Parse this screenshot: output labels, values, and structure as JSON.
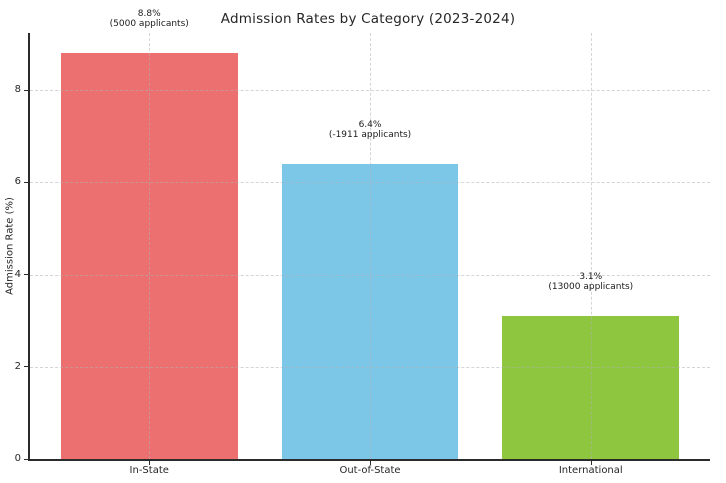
{
  "chart_data": {
    "type": "bar",
    "title": "Admission Rates by Category (2023-2024)",
    "xlabel": "",
    "ylabel": "Admission Rate (%)",
    "categories": [
      "In-State",
      "Out-of-State",
      "International"
    ],
    "values": [
      8.8,
      6.4,
      3.1
    ],
    "series": [
      {
        "name": "Admission Rate",
        "values": [
          8.8,
          6.4,
          3.1
        ]
      }
    ],
    "bars": [
      {
        "category": "In-State",
        "value": 8.8,
        "rate_label": "8.8%",
        "applicants_label": "(5000 applicants)",
        "color": "#ec7070"
      },
      {
        "category": "Out-of-State",
        "value": 6.4,
        "rate_label": "6.4%",
        "applicants_label": "(-1911 applicants)",
        "color": "#7cc6e8"
      },
      {
        "category": "International",
        "value": 3.1,
        "rate_label": "3.1%",
        "applicants_label": "(13000 applicants)",
        "color": "#8ec63f"
      }
    ],
    "yticks": [
      0,
      2,
      4,
      6,
      8
    ],
    "ylim": [
      0,
      9.24
    ],
    "bar_width_fraction": 0.8,
    "x_margin": 0.54,
    "grid": true,
    "grid_style": "dashed",
    "legend": false,
    "colors": {
      "axis": "#2b2b2b",
      "grid": "#b0b0b0",
      "text": "#262626",
      "background": "#ffffff"
    }
  }
}
